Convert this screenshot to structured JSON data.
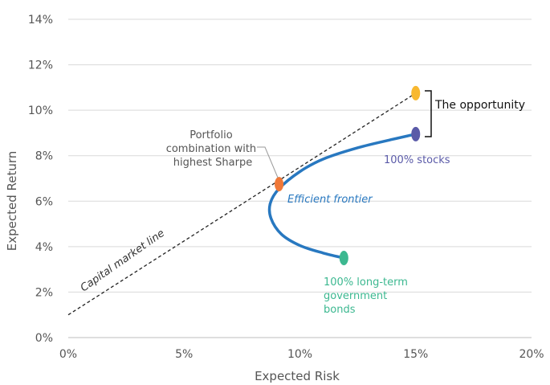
{
  "chart_data": {
    "type": "line",
    "xlabel": "Expected Risk",
    "ylabel": "Expected Return",
    "xlim": [
      0,
      20
    ],
    "ylim": [
      0,
      14
    ],
    "x_ticks": [
      "0%",
      "5%",
      "10%",
      "15%",
      "20%"
    ],
    "y_ticks": [
      "0%",
      "2%",
      "4%",
      "6%",
      "8%",
      "10%",
      "12%",
      "14%"
    ],
    "grid": "horizontal",
    "colors": {
      "frontier": "#2878c0",
      "cml": "#222222",
      "tangency": "#f07838",
      "stocks": "#5a5aa8",
      "bonds": "#3cb890",
      "opportunity": "#f8b830"
    },
    "series": [
      {
        "name": "Efficient frontier",
        "points": [
          [
            11.9,
            3.5
          ],
          [
            11.0,
            3.72
          ],
          [
            10.0,
            4.05
          ],
          [
            9.2,
            4.55
          ],
          [
            8.75,
            5.25
          ],
          [
            8.72,
            5.9
          ],
          [
            9.1,
            6.55
          ],
          [
            10.0,
            7.3
          ],
          [
            11.0,
            7.85
          ],
          [
            12.5,
            8.35
          ],
          [
            14.0,
            8.72
          ],
          [
            15.0,
            8.95
          ]
        ]
      },
      {
        "name": "Capital market line",
        "points": [
          [
            0,
            1.0
          ],
          [
            15,
            10.75
          ]
        ]
      }
    ],
    "points": [
      {
        "key": "tangency",
        "x": 9.1,
        "y": 6.75
      },
      {
        "key": "stocks",
        "x": 15.0,
        "y": 8.95
      },
      {
        "key": "bonds",
        "x": 11.9,
        "y": 3.5
      },
      {
        "key": "opportunity",
        "x": 15.0,
        "y": 10.75
      }
    ],
    "annotations": {
      "sharpe": [
        "Portfolio",
        "combination with",
        "highest Sharpe"
      ],
      "frontier": "Efficient frontier",
      "cml": "Capital market line",
      "stocks": "100% stocks",
      "bonds": [
        "100% long-term",
        "government",
        "bonds"
      ],
      "opportunity": "The opportunity"
    }
  }
}
